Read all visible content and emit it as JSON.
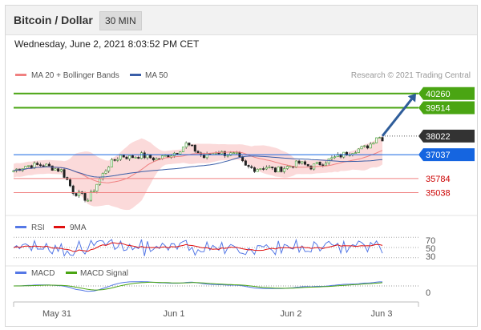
{
  "header": {
    "title": "Bitcoin / Dollar",
    "interval": "30 MIN"
  },
  "datetime": "Wednesday, June 2, 2021 8:03:52 PM CET",
  "credit": "Research © 2021 Trading Central",
  "colors": {
    "resistance": "#4aa513",
    "support": "#f08080",
    "current_price": "#333333",
    "pivot": "#1565e0",
    "bollinger_fill": "#fbdada",
    "ma20": "#f08080",
    "ma50": "#3a5ea8",
    "arrow": "#2f5d9a",
    "rsi": "#5578e6",
    "rsi_ma": "#e01010",
    "macd": "#5578e6",
    "macd_signal": "#4aa513"
  },
  "chart_data": [
    {
      "type": "candlestick",
      "legend": [
        {
          "name": "MA 20 + Bollinger Bands",
          "color": "#f08080"
        },
        {
          "name": "MA 50",
          "color": "#3a5ea8"
        }
      ],
      "x_ticks": [
        "May 31",
        "Jun 1",
        "Jun 2",
        "Jun 3"
      ],
      "ylim": [
        34300,
        40800
      ],
      "levels": [
        {
          "name": "resistance-2",
          "value": 40260,
          "label": "40260",
          "style": "resistance"
        },
        {
          "name": "resistance-1",
          "value": 39514,
          "label": "39514",
          "style": "resistance"
        },
        {
          "name": "current-price",
          "value": 38022,
          "label": "38022",
          "style": "current"
        },
        {
          "name": "pivot",
          "value": 37037,
          "label": "37037",
          "style": "pivot"
        },
        {
          "name": "support-1",
          "value": 35784,
          "label": "35784",
          "style": "support"
        },
        {
          "name": "support-2",
          "value": 35038,
          "label": "35038",
          "style": "support"
        }
      ],
      "forecast_arrow": {
        "from_value": 38022,
        "to_value": 40260
      },
      "price_path": [
        [
          0,
          36200
        ],
        [
          4,
          36450
        ],
        [
          10,
          36500
        ],
        [
          16,
          36200
        ],
        [
          18,
          35700
        ],
        [
          20,
          35100
        ],
        [
          23,
          34850
        ],
        [
          25,
          34650
        ],
        [
          28,
          35500
        ],
        [
          32,
          36500
        ],
        [
          36,
          37000
        ],
        [
          39,
          36900
        ],
        [
          43,
          37000
        ],
        [
          48,
          36800
        ],
        [
          52,
          37000
        ],
        [
          55,
          37200
        ],
        [
          58,
          37600
        ],
        [
          60,
          37400
        ],
        [
          64,
          36900
        ],
        [
          68,
          37200
        ],
        [
          71,
          37100
        ],
        [
          75,
          37000
        ],
        [
          78,
          36400
        ],
        [
          81,
          36300
        ],
        [
          85,
          36400
        ],
        [
          88,
          36200
        ],
        [
          92,
          36400
        ],
        [
          96,
          36600
        ],
        [
          100,
          36400
        ],
        [
          105,
          36700
        ],
        [
          110,
          37000
        ],
        [
          115,
          37300
        ],
        [
          118,
          37400
        ],
        [
          120,
          37600
        ],
        [
          122,
          38000
        ],
        [
          124,
          37900
        ]
      ]
    },
    {
      "type": "line",
      "legend": [
        {
          "name": "RSI",
          "color": "#5578e6"
        },
        {
          "name": "9MA",
          "color": "#e01010"
        }
      ],
      "ylim": [
        25,
        75
      ],
      "y_ticks": [
        70,
        50,
        30
      ]
    },
    {
      "type": "line",
      "legend": [
        {
          "name": "MACD",
          "color": "#5578e6"
        },
        {
          "name": "MACD Signal",
          "color": "#4aa513"
        }
      ],
      "y_ticks": [
        0
      ]
    }
  ]
}
